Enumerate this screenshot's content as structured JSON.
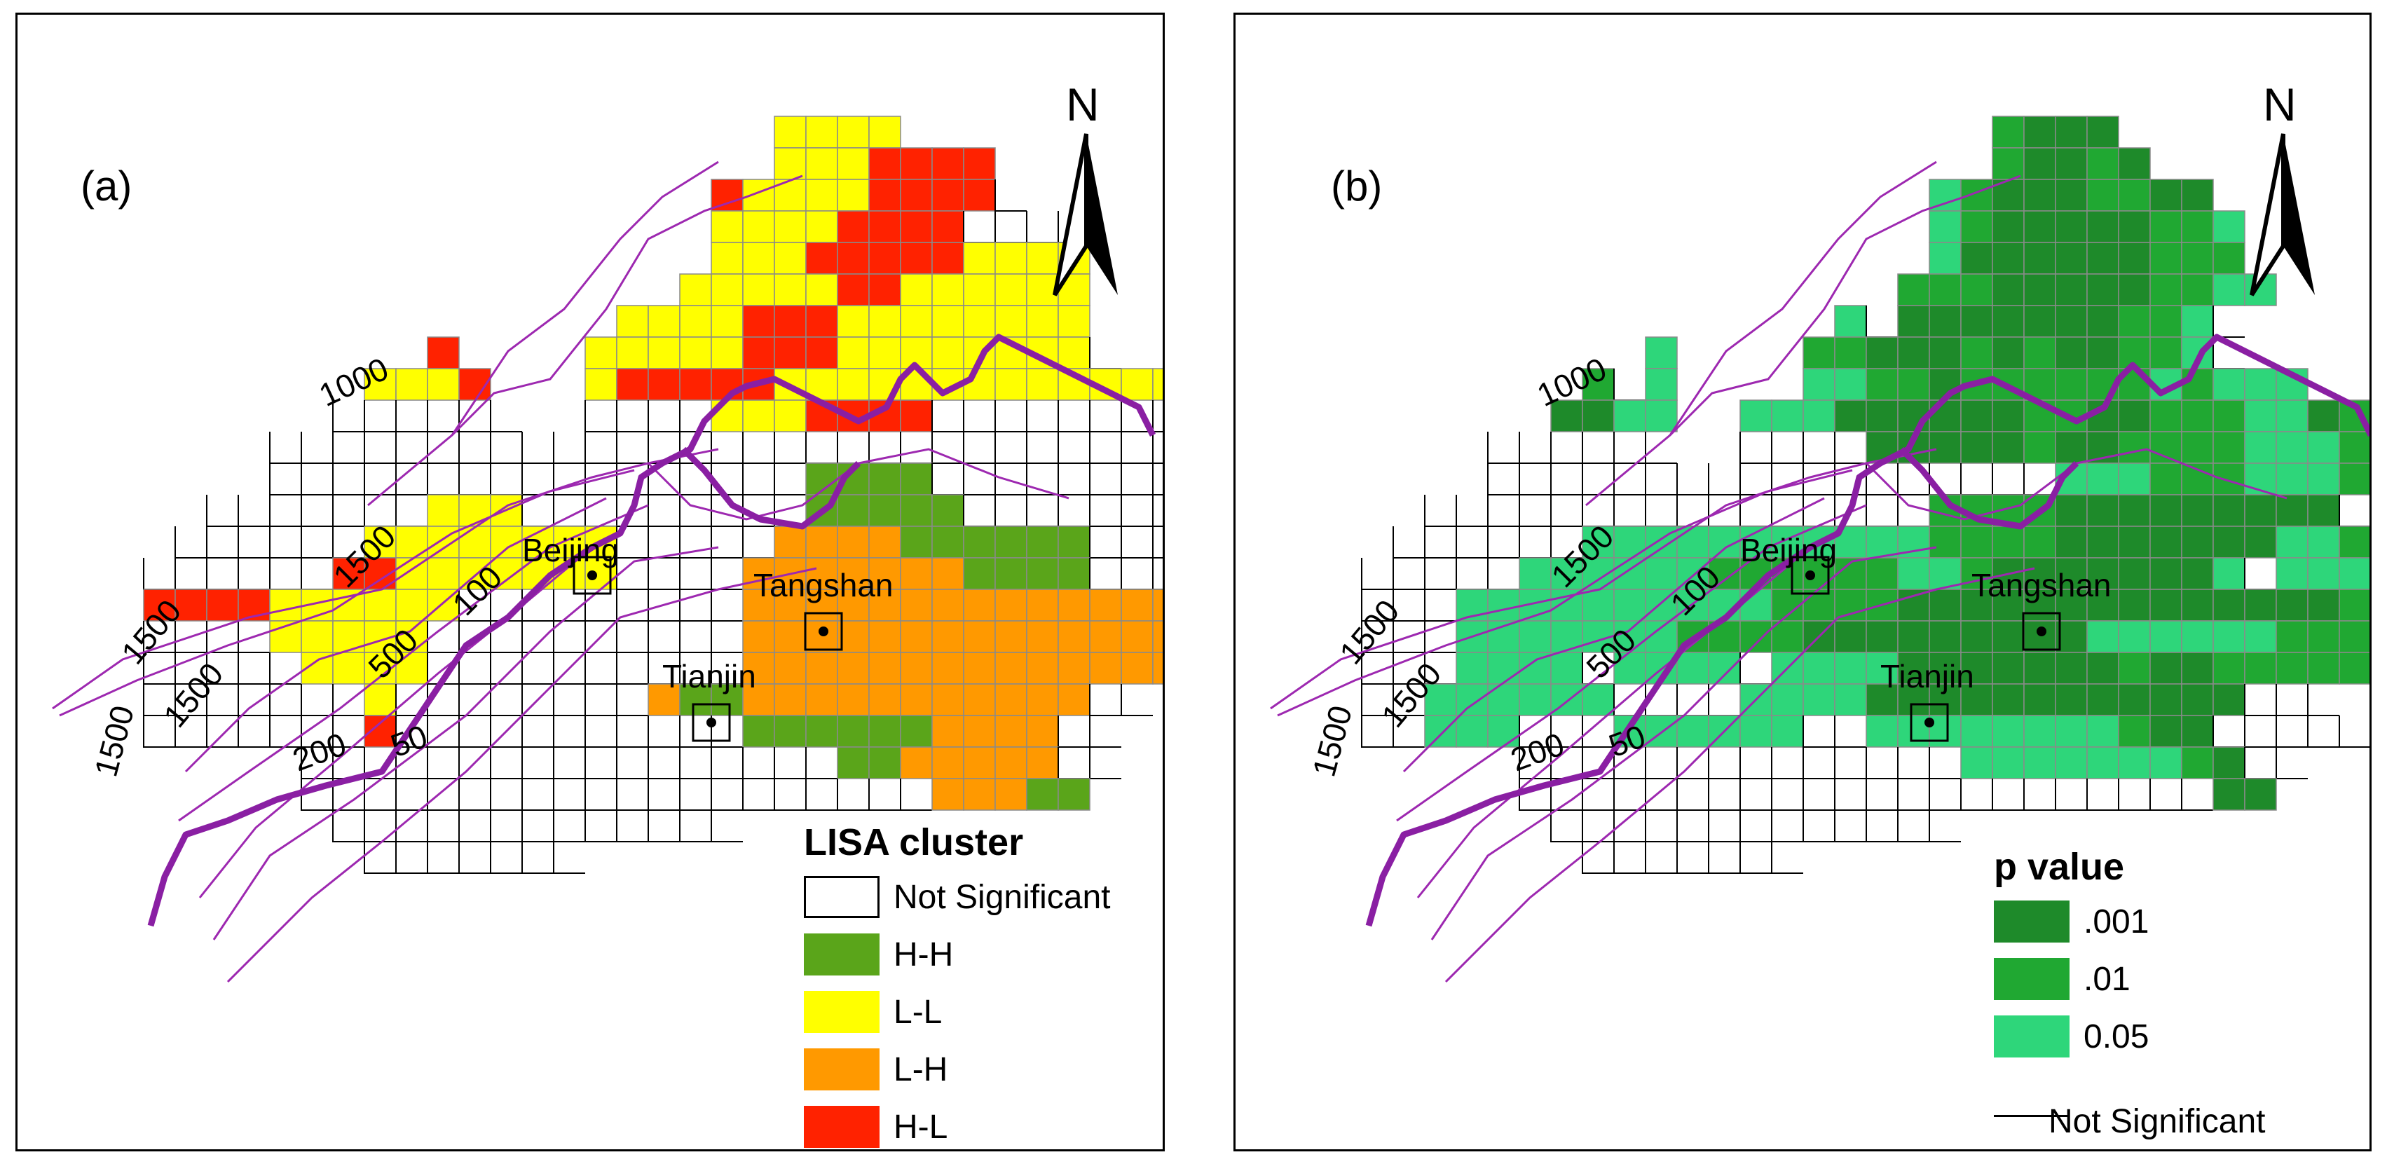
{
  "panels": {
    "a": {
      "label": "(a)",
      "north": "N",
      "legend_title": "LISA cluster",
      "legend": [
        {
          "label": "Not Significant",
          "color": "#ffffff",
          "outline": true
        },
        {
          "label": "H-H",
          "color": "#5aa51a"
        },
        {
          "label": "L-L",
          "color": "#ffff00"
        },
        {
          "label": "L-H",
          "color": "#ff9900"
        },
        {
          "label": "H-L",
          "color": "#ff2200"
        }
      ]
    },
    "b": {
      "label": "(b)",
      "north": "N",
      "legend_title": "p value",
      "legend": [
        {
          "label": ".001",
          "color": "#1e8a2a"
        },
        {
          "label": ".01",
          "color": "#20a832"
        },
        {
          "label": "0.05",
          "color": "#2ed67a"
        },
        {
          "label": "Not Significant",
          "color": "#ffffff",
          "line": true
        }
      ]
    }
  },
  "cities": [
    {
      "name": "Beijing"
    },
    {
      "name": "Tangshan"
    },
    {
      "name": "Tianjin"
    }
  ],
  "contour_labels": [
    "1000",
    "1500",
    "1500",
    "1500",
    "1500",
    "500",
    "100",
    "200",
    "50"
  ],
  "colors": {
    "grid": "#555555",
    "contour_thin": "#9d28b0",
    "contour_thick": "#8a1fa3"
  }
}
